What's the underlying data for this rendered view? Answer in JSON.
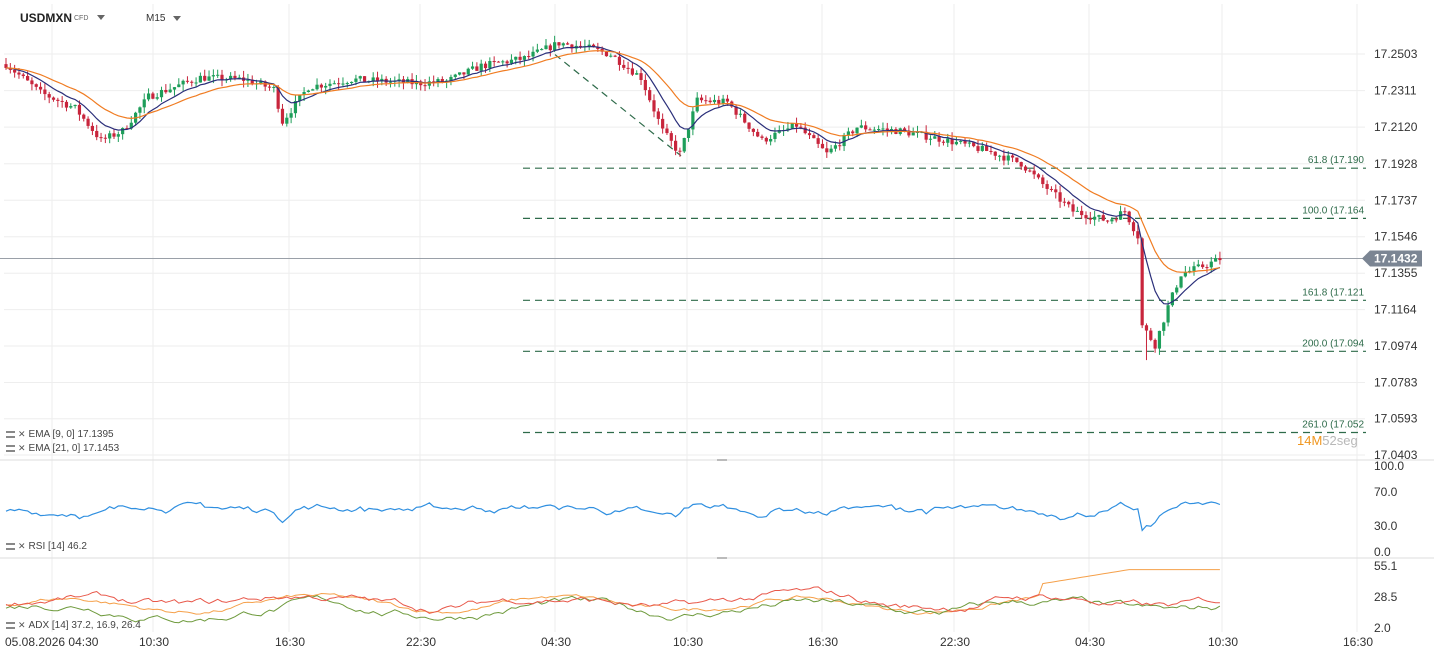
{
  "header": {
    "symbol": "USDMXN",
    "symbol_type": "CFD",
    "timeframe": "M15"
  },
  "price_axis": {
    "ticks": [
      "17.2503",
      "17.2311",
      "17.2120",
      "17.1928",
      "17.1737",
      "17.1546",
      "17.1355",
      "17.1164",
      "17.0974",
      "17.0783",
      "17.0593",
      "17.0403"
    ],
    "current_price": "17.1432",
    "current_price_color": "#7b8593"
  },
  "time_axis": {
    "labels": [
      "05.08.2026 04:30",
      "10:30",
      "16:30",
      "22:30",
      "04:30",
      "10:30",
      "16:30",
      "22:30",
      "04:30",
      "10:30",
      "16:30"
    ]
  },
  "fibonacci": {
    "levels": [
      {
        "label": "61.8 (17.190",
        "price": 17.1905
      },
      {
        "label": "100.0 (17.164",
        "price": 17.1642
      },
      {
        "label": "161.8 (17.121",
        "price": 17.1213
      },
      {
        "label": "200.0 (17.094",
        "price": 17.0946
      },
      {
        "label": "261.0 (17.052",
        "price": 17.0521
      }
    ],
    "color": "#2e6b4a"
  },
  "indicators": {
    "ema9": {
      "label": "EMA [9, 0] 17.1395",
      "color": "#2b2f7a"
    },
    "ema21": {
      "label": "EMA [21, 0] 17.1453",
      "color": "#f07c22"
    },
    "rsi": {
      "label": "RSI [14] 46.2",
      "color": "#2f8fe0",
      "ticks": [
        "100.0",
        "70.0",
        "30.0",
        "0.0"
      ]
    },
    "adx": {
      "label": "ADX [14] 37.2, 16.9, 26.4",
      "ticks": [
        "55.1",
        "28.5",
        "2.0"
      ],
      "colors": {
        "adx": "#f5a04a",
        "plus_di": "#6e9a3c",
        "minus_di": "#e8584a"
      }
    }
  },
  "countdown": {
    "minutes": "14M",
    "seconds": "52seg"
  },
  "colors": {
    "bull": "#1e9e5a",
    "bear": "#c8253c",
    "grid": "#eeeeee"
  },
  "chart_data": {
    "type": "candlestick",
    "interval": "15m",
    "y_range": [
      17.0403,
      17.2503
    ],
    "anchor_points": [
      [
        0,
        17.245
      ],
      [
        8,
        17.23
      ],
      [
        16,
        17.222
      ],
      [
        22,
        17.205
      ],
      [
        27,
        17.21
      ],
      [
        33,
        17.228
      ],
      [
        45,
        17.238
      ],
      [
        55,
        17.237
      ],
      [
        62,
        17.232
      ],
      [
        64,
        17.215
      ],
      [
        70,
        17.233
      ],
      [
        80,
        17.237
      ],
      [
        95,
        17.235
      ],
      [
        102,
        17.236
      ],
      [
        110,
        17.244
      ],
      [
        120,
        17.248
      ],
      [
        128,
        17.256
      ],
      [
        134,
        17.254
      ],
      [
        140,
        17.25
      ],
      [
        147,
        17.238
      ],
      [
        152,
        17.21
      ],
      [
        156,
        17.198
      ],
      [
        160,
        17.226
      ],
      [
        167,
        17.225
      ],
      [
        175,
        17.205
      ],
      [
        183,
        17.213
      ],
      [
        190,
        17.198
      ],
      [
        197,
        17.212
      ],
      [
        207,
        17.21
      ],
      [
        218,
        17.205
      ],
      [
        228,
        17.199
      ],
      [
        235,
        17.193
      ],
      [
        240,
        17.182
      ],
      [
        247,
        17.168
      ],
      [
        255,
        17.163
      ],
      [
        259,
        17.168
      ],
      [
        262,
        17.155
      ],
      [
        263,
        17.108
      ],
      [
        266,
        17.098
      ],
      [
        269,
        17.118
      ],
      [
        272,
        17.135
      ],
      [
        278,
        17.14
      ],
      [
        281,
        17.143
      ]
    ]
  }
}
